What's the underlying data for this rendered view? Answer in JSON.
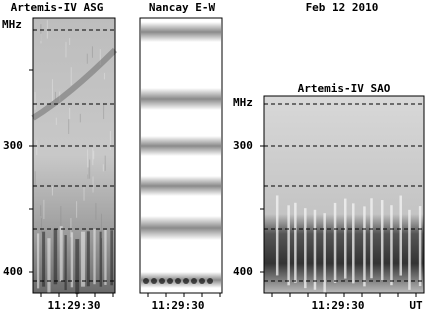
{
  "header": {
    "date": "Feb 12 2010"
  },
  "panels": [
    {
      "title": "Artemis-IV ASG",
      "unit": "MHz",
      "yticks": [
        "300",
        "400"
      ],
      "xtick": "11:29:30"
    },
    {
      "title": "Nancay E-W",
      "xtick": "11:29:30"
    },
    {
      "title": "Artemis-IV SAO",
      "unit": "MHz",
      "yticks": [
        "300",
        "400"
      ],
      "xtick": "11:29:30",
      "xunit": "UT"
    }
  ]
}
